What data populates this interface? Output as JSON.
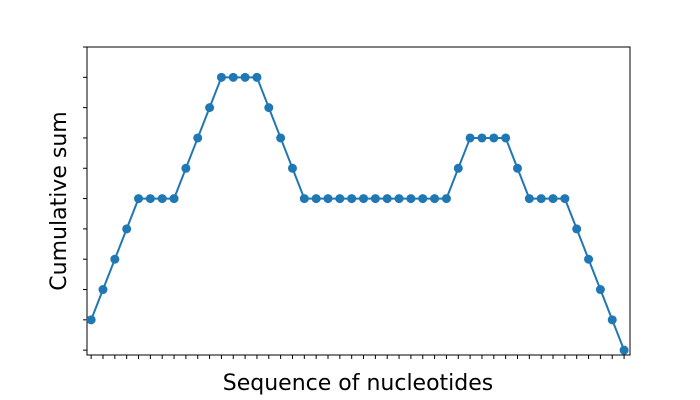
{
  "chart_data": {
    "type": "line",
    "x_label": "Sequence of nucleotides",
    "y_label": "Cumulative sum",
    "x": [
      0,
      1,
      2,
      3,
      4,
      5,
      6,
      7,
      8,
      9,
      10,
      11,
      12,
      13,
      14,
      15,
      16,
      17,
      18,
      19,
      20,
      21,
      22,
      23,
      24,
      25,
      26,
      27,
      28,
      29,
      30,
      31,
      32,
      33,
      34,
      35,
      36,
      37,
      38,
      39,
      40,
      41,
      42,
      43,
      44,
      45
    ],
    "series": [
      {
        "color": "#1f77b4",
        "values": [
          1,
          2,
          3,
          4,
          5,
          5,
          5,
          5,
          6,
          7,
          8,
          9,
          9,
          9,
          9,
          8,
          7,
          6,
          5,
          5,
          5,
          5,
          5,
          5,
          5,
          5,
          5,
          5,
          5,
          5,
          5,
          6,
          7,
          7,
          7,
          7,
          6,
          5,
          5,
          5,
          5,
          4,
          3,
          2,
          1,
          0
        ]
      }
    ],
    "xlim": [
      -0.35,
      45.5
    ],
    "xticks": [
      0,
      1,
      2,
      3,
      4,
      5,
      6,
      7,
      8,
      9,
      10,
      11,
      12,
      13,
      14,
      15,
      16,
      17,
      18,
      19,
      20,
      21,
      22,
      23,
      24,
      25,
      26,
      27,
      28,
      29,
      30,
      31,
      32,
      33,
      34,
      35,
      36,
      37,
      38,
      39,
      40,
      41,
      42,
      43,
      44,
      45
    ],
    "ylim": [
      -0.16,
      10
    ],
    "yticks": [
      0,
      1,
      2,
      3,
      4,
      5,
      6,
      7,
      8,
      9,
      10
    ]
  }
}
